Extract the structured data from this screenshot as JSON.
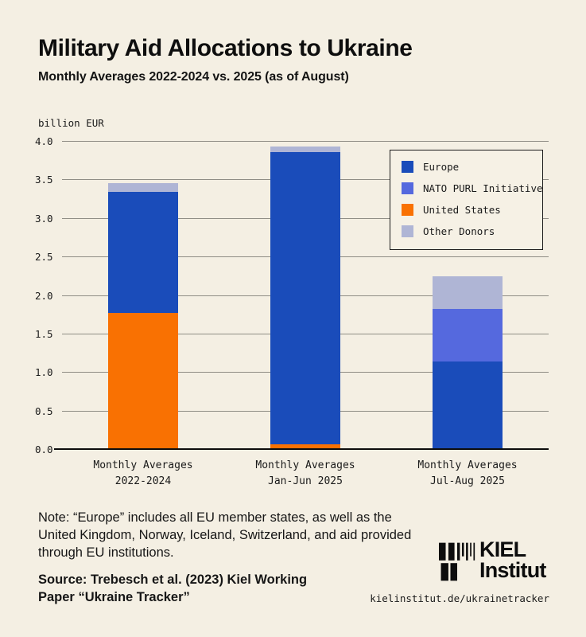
{
  "header": {
    "title": "Military Aid Allocations to Ukraine",
    "subtitle": "Monthly Averages 2022-2024 vs. 2025 (as of August)"
  },
  "chart_data": {
    "type": "bar",
    "stacked": true,
    "title": "Military Aid Allocations to Ukraine",
    "ylabel": "billion EUR",
    "xlabel": "",
    "ylim": [
      0,
      4
    ],
    "ytick_step": 0.5,
    "grid": true,
    "legend_position": "upper right",
    "categories": [
      [
        "Monthly Averages",
        "2022-2024"
      ],
      [
        "Monthly Averages",
        "Jan-Jun 2025"
      ],
      [
        "Monthly Averages",
        "Jul-Aug 2025"
      ]
    ],
    "series": [
      {
        "name": "United States",
        "color": "#f97102",
        "values": [
          1.78,
          0.07,
          0
        ]
      },
      {
        "name": "Europe",
        "color": "#1a4cba",
        "values": [
          1.57,
          3.8,
          1.15
        ]
      },
      {
        "name": "NATO PURL Initiative",
        "color": "#5569de",
        "values": [
          0,
          0,
          0.68
        ]
      },
      {
        "name": "Other Donors",
        "color": "#afb5d5",
        "values": [
          0.11,
          0.07,
          0.42
        ]
      }
    ]
  },
  "legend": {
    "items": [
      {
        "label": "Europe",
        "color": "#1a4cba"
      },
      {
        "label": "NATO PURL Initiative",
        "color": "#5569de"
      },
      {
        "label": "United States",
        "color": "#f97102"
      },
      {
        "label": "Other Donors",
        "color": "#afb5d5"
      }
    ]
  },
  "axis": {
    "unit_label": "billion EUR"
  },
  "note": "Note: “Europe” includes all EU member states, as well as the United Kingdom, Norway, Iceland, Switzerland, and aid provided through EU institutions.",
  "source": "Source: Trebesch et al. (2023) Kiel Working Paper “Ukraine Tracker”",
  "footer": {
    "logo_line1": "KIEL",
    "logo_line2": "Institut",
    "url": "kielinstitut.de/ukrainetracker"
  },
  "colors": {
    "background": "#f4efe3",
    "europe": "#1a4cba",
    "nato_purl": "#5569de",
    "united_states": "#f97102",
    "other_donors": "#afb5d5",
    "gridline": "#8f8d85",
    "text": "#161616"
  }
}
